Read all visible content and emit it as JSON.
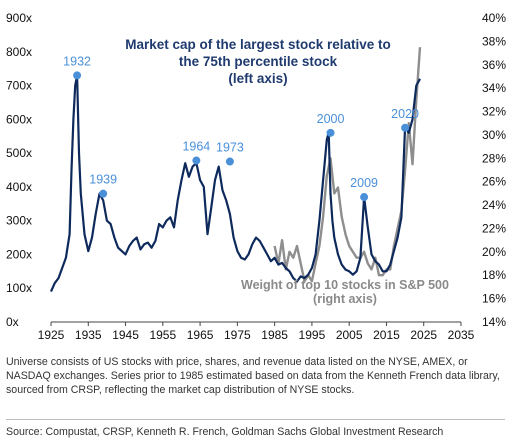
{
  "chart_data": {
    "type": "line",
    "title_lines": [
      "Market cap of the largest stock relative to",
      "the 75th percentile stock",
      "(left axis)"
    ],
    "x_ticks": [
      1925,
      1935,
      1945,
      1955,
      1965,
      1975,
      1985,
      1995,
      2005,
      2015,
      2025,
      2035
    ],
    "xlim": [
      1925,
      2035
    ],
    "y_left_ticks": [
      "0x",
      "100x",
      "200x",
      "300x",
      "400x",
      "500x",
      "600x",
      "700x",
      "800x",
      "900x"
    ],
    "ylim_left": [
      0,
      900
    ],
    "y_right_ticks": [
      "14%",
      "16%",
      "18%",
      "20%",
      "22%",
      "24%",
      "26%",
      "28%",
      "30%",
      "32%",
      "34%",
      "36%",
      "38%",
      "40%"
    ],
    "ylim_right": [
      14,
      40
    ],
    "series": [
      {
        "name": "Market cap of the largest stock relative to the 75th percentile stock",
        "color": "#0e2a5c",
        "axis": "left",
        "x": [
          1925,
          1926,
          1927,
          1928,
          1929,
          1930,
          1930.5,
          1931,
          1931.5,
          1932,
          1932.5,
          1933,
          1934,
          1935,
          1936,
          1937,
          1938,
          1939,
          1940,
          1941,
          1942,
          1943,
          1944,
          1945,
          1946,
          1947,
          1948,
          1949,
          1950,
          1951,
          1952,
          1953,
          1954,
          1955,
          1956,
          1957,
          1958,
          1959,
          1960,
          1961,
          1962,
          1963,
          1964,
          1965,
          1966,
          1967,
          1968,
          1969,
          1970,
          1971,
          1972,
          1973,
          1974,
          1975,
          1976,
          1977,
          1978,
          1979,
          1980,
          1981,
          1982,
          1983,
          1984,
          1985,
          1986,
          1987,
          1988,
          1989,
          1990,
          1991,
          1992,
          1993,
          1994,
          1995,
          1996,
          1997,
          1998,
          1999,
          1999.5,
          2000,
          2000.5,
          2001,
          2002,
          2003,
          2004,
          2005,
          2006,
          2007,
          2008,
          2009,
          2010,
          2011,
          2012,
          2013,
          2014,
          2015,
          2016,
          2017,
          2018,
          2019,
          2020,
          2021,
          2022,
          2023,
          2024
        ],
        "values": [
          90,
          115,
          130,
          160,
          190,
          260,
          450,
          600,
          700,
          730,
          500,
          380,
          260,
          210,
          250,
          320,
          380,
          360,
          300,
          290,
          250,
          220,
          210,
          200,
          225,
          240,
          250,
          215,
          230,
          235,
          220,
          240,
          290,
          280,
          300,
          310,
          280,
          360,
          420,
          470,
          430,
          460,
          470,
          420,
          400,
          260,
          340,
          420,
          460,
          390,
          360,
          320,
          250,
          210,
          190,
          185,
          200,
          230,
          250,
          240,
          220,
          200,
          180,
          190,
          170,
          175,
          160,
          150,
          130,
          120,
          135,
          130,
          140,
          160,
          200,
          300,
          420,
          540,
          560,
          380,
          300,
          250,
          200,
          170,
          155,
          150,
          140,
          150,
          190,
          370,
          280,
          200,
          180,
          170,
          150,
          150,
          170,
          210,
          250,
          310,
          580,
          560,
          600,
          700,
          720
        ]
      },
      {
        "name": "Weight of top 10 stocks in S&P 500",
        "color": "#8e8e8e",
        "axis": "right",
        "x": [
          1985,
          1986,
          1987,
          1988,
          1989,
          1990,
          1991,
          1992,
          1993,
          1994,
          1995,
          1996,
          1997,
          1998,
          1999,
          2000,
          2001,
          2002,
          2003,
          2004,
          2005,
          2006,
          2007,
          2008,
          2009,
          2010,
          2011,
          2012,
          2013,
          2014,
          2015,
          2016,
          2017,
          2018,
          2019,
          2020,
          2021,
          2022,
          2023,
          2024
        ],
        "values": [
          20.5,
          19.0,
          21.0,
          18.5,
          20.0,
          19.5,
          20.5,
          19.0,
          17.5,
          18.0,
          17.5,
          19.0,
          20.5,
          23.0,
          26.5,
          28.0,
          25.0,
          25.5,
          23.0,
          21.5,
          20.5,
          20.0,
          19.5,
          19.5,
          20.0,
          19.0,
          18.5,
          19.5,
          18.0,
          18.0,
          18.5,
          18.5,
          20.5,
          22.0,
          23.5,
          27.0,
          31.0,
          27.5,
          33.0,
          37.5
        ]
      }
    ],
    "point_labels": [
      {
        "x": 1932,
        "y": 730,
        "text": "1932"
      },
      {
        "x": 1939,
        "y": 380,
        "text": "1939"
      },
      {
        "x": 1964,
        "y": 478,
        "text": "1964"
      },
      {
        "x": 1973,
        "y": 475,
        "text": "1973"
      },
      {
        "x": 2000,
        "y": 560,
        "text": "2000"
      },
      {
        "x": 2009,
        "y": 370,
        "text": "2009"
      },
      {
        "x": 2020,
        "y": 575,
        "text": "2020"
      }
    ],
    "marker_color": "#4a90d9",
    "label_color": "#4a90d9",
    "title_color": "#1f3a6e",
    "weight_label_lines": [
      "Weight of top 10 stocks in S&P 500",
      "(right axis)"
    ],
    "weight_label_color": "#8a8a8a",
    "grid": false
  },
  "note": "Universe consists of US stocks with price, shares, and revenue data listed on the NYSE, AMEX, or NASDAQ exchanges. Series prior to 1985 estimated based on data from the Kenneth French data library, sourced from CRSP, reflecting the market cap distribution of NYSE stocks.",
  "source": "Source: Compustat, CRSP, Kenneth R. French, Goldman Sachs Global Investment Research"
}
